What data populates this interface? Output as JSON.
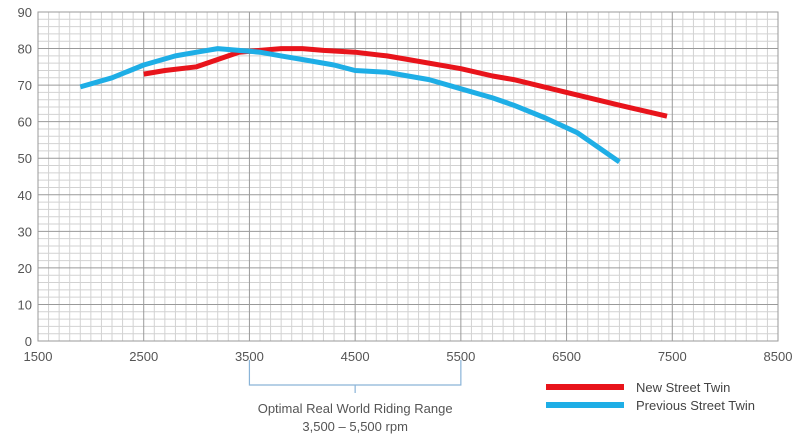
{
  "chart_data": {
    "type": "line",
    "title": "",
    "xlabel": "",
    "ylabel": "",
    "xlim": [
      1500,
      8500
    ],
    "ylim": [
      0,
      90
    ],
    "x_ticks": [
      "1500",
      "2500",
      "3500",
      "4500",
      "5500",
      "6500",
      "7500",
      "8500"
    ],
    "y_ticks": [
      "0",
      "10",
      "20",
      "30",
      "40",
      "50",
      "60",
      "70",
      "80",
      "90"
    ],
    "grid": true,
    "legend_position": "bottom-right",
    "series": [
      {
        "name": "New Street Twin",
        "color": "#e8141b",
        "x": [
          2500,
          2700,
          3000,
          3200,
          3400,
          3600,
          3800,
          4000,
          4200,
          4500,
          4800,
          5000,
          5500,
          5800,
          6000,
          6500,
          7000,
          7450
        ],
        "y": [
          73,
          74,
          75,
          77,
          79,
          79.5,
          80,
          80,
          79.5,
          79,
          78,
          77,
          74.5,
          72.5,
          71.5,
          68,
          64.5,
          61.5
        ]
      },
      {
        "name": "Previous Street Twin",
        "color": "#1eaee6",
        "x": [
          1900,
          2200,
          2500,
          2800,
          3000,
          3200,
          3400,
          3600,
          3800,
          4000,
          4300,
          4500,
          4800,
          5000,
          5200,
          5500,
          5800,
          6000,
          6300,
          6600,
          7000
        ],
        "y": [
          69.5,
          72,
          75.5,
          78,
          79,
          80,
          79.5,
          79,
          78,
          77,
          75.5,
          74,
          73.5,
          72.5,
          71.5,
          69,
          66.5,
          64.5,
          61,
          57,
          49
        ]
      }
    ],
    "annotation": {
      "range": [
        3500,
        5500
      ],
      "line1": "Optimal Real World Riding Range",
      "line2": "3,500 – 5,500 rpm"
    }
  }
}
